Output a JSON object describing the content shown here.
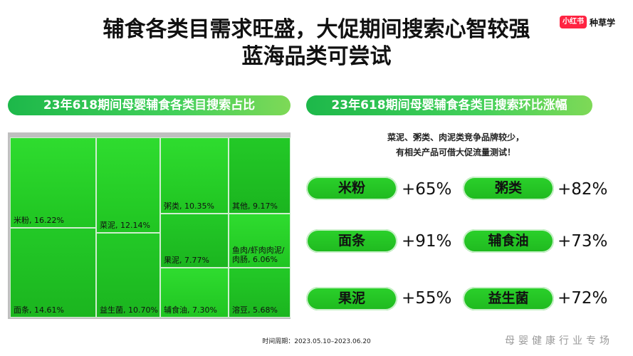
{
  "title": {
    "line1": "辅食各类目需求旺盛，大促期间搜索心智较强",
    "line2": "蓝海品类可尝试"
  },
  "brand": {
    "logo": "小红书",
    "text": "种草学"
  },
  "left_header": "23年618期间母婴辅食各类目搜索占比",
  "right_header": "23年618期间母婴辅食各类目搜索环比涨幅",
  "note": {
    "line1": "菜泥、粥类、肉泥类竞争品牌较少，",
    "line2": "有相关产品可借大促流量测试！"
  },
  "footer": {
    "date": "时间周期：2023.05.10–2023.06.20",
    "watermark": "母婴健康行业专场"
  },
  "colors": {
    "accent": "#1fbf2b",
    "header_gradient_end": "#7ed957",
    "brand": "#ff2442"
  },
  "chart_data": [
    {
      "type": "treemap",
      "title": "23年618期间母婴辅食各类目搜索占比",
      "items": [
        {
          "label": "米粉, 16.22%",
          "name": "米粉",
          "value": 16.22
        },
        {
          "label": "面条, 14.61%",
          "name": "面条",
          "value": 14.61
        },
        {
          "label": "菜泥, 12.14%",
          "name": "菜泥",
          "value": 12.14
        },
        {
          "label": "益生菌, 10.70%",
          "name": "益生菌",
          "value": 10.7
        },
        {
          "label": "粥类, 10.35%",
          "name": "粥类",
          "value": 10.35
        },
        {
          "label": "果泥, 7.77%",
          "name": "果泥",
          "value": 7.77
        },
        {
          "label": "辅食油, 7.30%",
          "name": "辅食油",
          "value": 7.3
        },
        {
          "label": "其他, 9.17%",
          "name": "其他",
          "value": 9.17
        },
        {
          "label": "鱼肉/虾肉肉泥/肉肠, 6.06%",
          "name": "鱼肉/虾肉肉泥/肉肠",
          "value": 6.06
        },
        {
          "label": "溶豆, 5.68%",
          "name": "溶豆",
          "value": 5.68
        }
      ]
    },
    {
      "type": "table",
      "title": "23年618期间母婴辅食各类目搜索环比涨幅",
      "items": [
        {
          "name": "米粉",
          "growth": "+65%"
        },
        {
          "name": "粥类",
          "growth": "+82%"
        },
        {
          "name": "面条",
          "growth": "+91%"
        },
        {
          "name": "辅食油",
          "growth": "+73%"
        },
        {
          "name": "果泥",
          "growth": "+55%"
        },
        {
          "name": "益生菌",
          "growth": "+72%"
        }
      ]
    }
  ]
}
